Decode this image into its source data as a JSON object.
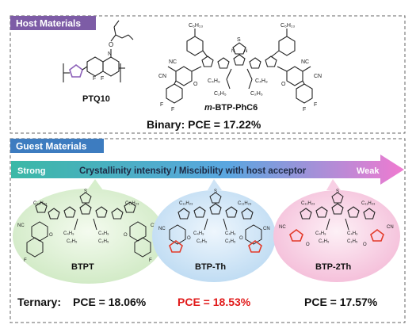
{
  "host": {
    "header": "Host Materials",
    "polymer_name": "PTQ10",
    "acceptor_name": "m-BTP-PhC6",
    "acceptor_prefix": "m",
    "acceptor_suffix": "-BTP-PhC6",
    "binary_result": "Binary:  PCE = 17.22%",
    "polymer_atoms": {
      "f": "F",
      "n": "N",
      "o": "O"
    },
    "acceptor_atoms": {
      "c6h13_left": "C₆H₁₃",
      "c6h13_right": "C₆H₁₃",
      "c4h9_a": "C₄H₉",
      "c2h5_a": "C₂H₅",
      "c4h9_b": "C₄H₉",
      "c2h5_b": "C₂H₅",
      "cn_left_1": "NC",
      "cn_left_2": "CN",
      "cn_right_1": "NC",
      "cn_right_2": "CN",
      "o_left": "O",
      "o_right": "O",
      "f_left_1": "F",
      "f_left_2": "F",
      "f_right_1": "F",
      "f_right_2": "F",
      "core_s": "S",
      "core_n": "N"
    }
  },
  "guest": {
    "header": "Guest Materials",
    "arrow": {
      "left_label": "Strong",
      "center_label": "Crystallinity intensity / Miscibility with host acceptor",
      "right_label": "Weak"
    },
    "materials": [
      {
        "name": "BTPT",
        "result": "PCE = 18.06%"
      },
      {
        "name": "BTP-Th",
        "result": "PCE = 18.53%"
      },
      {
        "name": "BTP-2Th",
        "result": "PCE = 17.57%"
      }
    ],
    "ternary_label": "Ternary:",
    "molecule_atoms": {
      "c11h23": "C₁₁H₂₃",
      "c4h9": "C₄H₉",
      "c2h5": "C₂H₅",
      "nc": "NC",
      "cn": "CN",
      "o": "O",
      "f": "F",
      "s": "S",
      "n": "N"
    }
  },
  "colors": {
    "host_header_bg": "#7d5ca6",
    "guest_header_bg": "#3d7cc0",
    "arrow_start": "#3bb8a6",
    "arrow_mid": "#5aa6e0",
    "arrow_end": "#f07ad0",
    "bubble_green": "#d7efcc",
    "bubble_blue": "#cfe4f6",
    "bubble_pink": "#f8cfe4",
    "highlight_red": "#e11a1a",
    "thiophene_red": "#e33b2a",
    "polymer_purple": "#8b5fb8"
  }
}
